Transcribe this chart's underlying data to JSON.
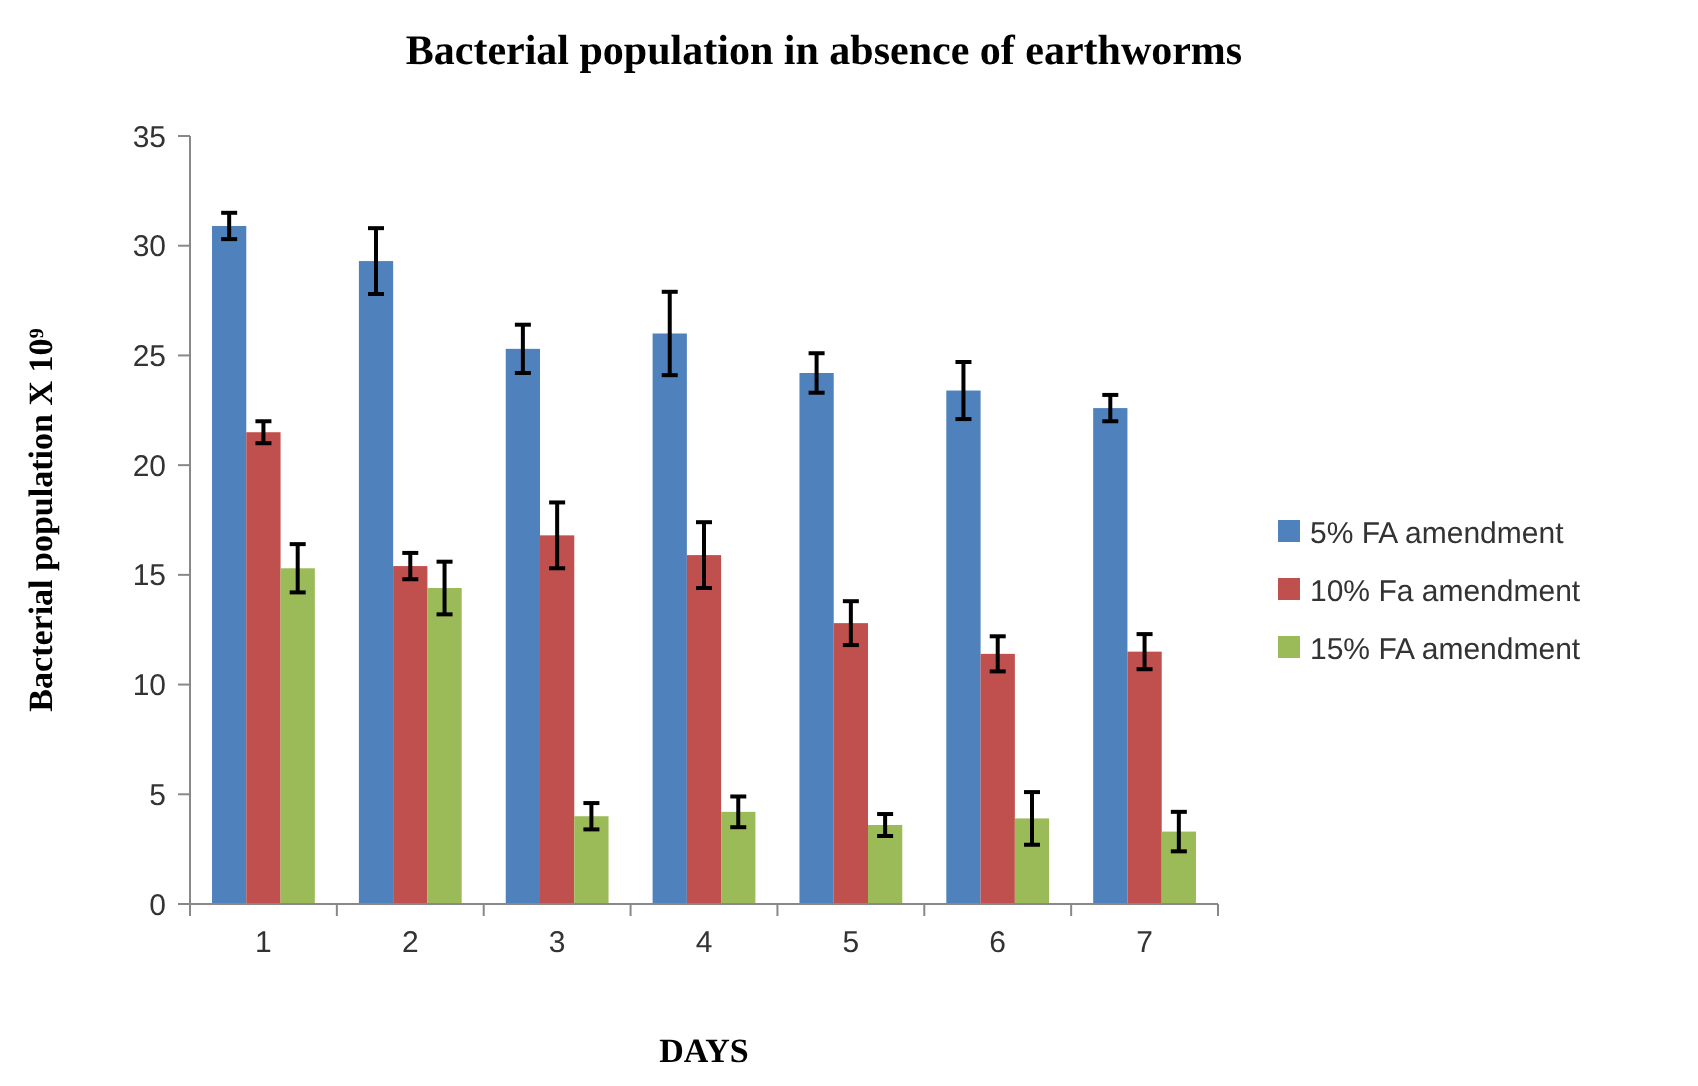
{
  "chart_data": {
    "type": "bar",
    "title": "Bacterial population in absence of earthworms",
    "xlabel": "DAYS",
    "ylabel": "Bacterial population X 10⁹",
    "categories": [
      "1",
      "2",
      "3",
      "4",
      "5",
      "6",
      "7"
    ],
    "series": [
      {
        "name": "5% FA amendment",
        "color": "#4f81bd",
        "values": [
          30.9,
          29.3,
          25.3,
          26.0,
          24.2,
          23.4,
          22.6
        ],
        "errors": [
          0.6,
          1.5,
          1.1,
          1.9,
          0.9,
          1.3,
          0.6
        ]
      },
      {
        "name": "10% Fa amendment",
        "color": "#c0504d",
        "values": [
          21.5,
          15.4,
          16.8,
          15.9,
          12.8,
          11.4,
          11.5
        ],
        "errors": [
          0.5,
          0.6,
          1.5,
          1.5,
          1.0,
          0.8,
          0.8
        ]
      },
      {
        "name": "15% FA amendment",
        "color": "#9bbb59",
        "values": [
          15.3,
          14.4,
          4.0,
          4.2,
          3.6,
          3.9,
          3.3
        ],
        "errors": [
          1.1,
          1.2,
          0.6,
          0.7,
          0.5,
          1.2,
          0.9
        ]
      }
    ],
    "ylim": [
      0,
      35
    ],
    "yticks": [
      0,
      5,
      10,
      15,
      20,
      25,
      30,
      35
    ],
    "grid": false,
    "legend": "right"
  }
}
